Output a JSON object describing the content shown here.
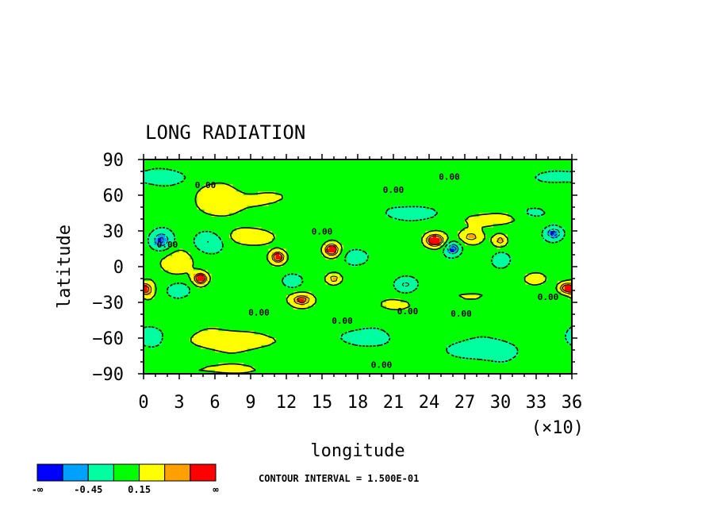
{
  "chart_data": {
    "type": "heatmap",
    "title": "LONG RADIATION",
    "xlabel": "longitude",
    "ylabel": "latitude",
    "x_ticks": [
      "0",
      "3",
      "6",
      "9",
      "12",
      "15",
      "18",
      "21",
      "24",
      "27",
      "30",
      "33",
      "36"
    ],
    "x_multiplier": "(×10)",
    "y_ticks": [
      "90",
      "60",
      "30",
      "0",
      "−30",
      "−60",
      "−90"
    ],
    "xlim": [
      0,
      360
    ],
    "ylim": [
      -90,
      90
    ],
    "grid": false,
    "contour_interval_text": "CONTOUR INTERVAL = 1.500E-01",
    "contour_label": "0.00",
    "colorbar": {
      "colors": [
        "#0000ff",
        "#00a0ff",
        "#00ffa0",
        "#00ff00",
        "#ffff00",
        "#ffa000",
        "#ff0000"
      ],
      "labels": [
        "-∞",
        "-0.45",
        "0.15",
        "∞"
      ]
    },
    "contour_label_positions": [
      {
        "lon": 52,
        "lat": 66
      },
      {
        "lon": 210,
        "lat": 62
      },
      {
        "lon": 257,
        "lat": 73
      },
      {
        "lon": 150,
        "lat": 27
      },
      {
        "lon": 20,
        "lat": 16
      },
      {
        "lon": 97,
        "lat": -41
      },
      {
        "lon": 167,
        "lat": -48
      },
      {
        "lon": 222,
        "lat": -40
      },
      {
        "lon": 267,
        "lat": -42
      },
      {
        "lon": 340,
        "lat": -28
      },
      {
        "lon": 200,
        "lat": -85
      }
    ],
    "anomalies": [
      {
        "lon": 15,
        "lat": 22,
        "v": -0.7,
        "rx": 10,
        "ry": 9
      },
      {
        "lon": 345,
        "lat": 28,
        "v": -0.7,
        "rx": 8,
        "ry": 6
      },
      {
        "lon": 260,
        "lat": 15,
        "v": -0.75,
        "rx": 7,
        "ry": 6
      },
      {
        "lon": 125,
        "lat": -12,
        "v": -0.5,
        "rx": 9,
        "ry": 6
      },
      {
        "lon": 220,
        "lat": -15,
        "v": -0.55,
        "rx": 10,
        "ry": 7
      },
      {
        "lon": 300,
        "lat": 5,
        "v": -0.5,
        "rx": 8,
        "ry": 7
      },
      {
        "lon": 30,
        "lat": -20,
        "v": -0.5,
        "rx": 10,
        "ry": 7
      },
      {
        "lon": 55,
        "lat": 20,
        "v": -0.4,
        "rx": 12,
        "ry": 8
      },
      {
        "lon": 180,
        "lat": 8,
        "v": -0.35,
        "rx": 12,
        "ry": 8
      },
      {
        "lon": 48,
        "lat": -10,
        "v": 0.9,
        "rx": 6,
        "ry": 5
      },
      {
        "lon": 113,
        "lat": 8,
        "v": 0.85,
        "rx": 6,
        "ry": 5
      },
      {
        "lon": 158,
        "lat": 14,
        "v": 0.95,
        "rx": 7,
        "ry": 6
      },
      {
        "lon": 245,
        "lat": 22,
        "v": 0.95,
        "rx": 9,
        "ry": 6
      },
      {
        "lon": 355,
        "lat": -18,
        "v": 0.85,
        "rx": 7,
        "ry": 5
      },
      {
        "lon": 133,
        "lat": -28,
        "v": 0.7,
        "rx": 9,
        "ry": 5
      },
      {
        "lon": 160,
        "lat": -10,
        "v": 0.65,
        "rx": 7,
        "ry": 5
      },
      {
        "lon": 4,
        "lat": -20,
        "v": 0.55,
        "rx": 6,
        "ry": 8
      },
      {
        "lon": 300,
        "lat": 22,
        "v": 0.6,
        "rx": 6,
        "ry": 5
      },
      {
        "lon": 330,
        "lat": -10,
        "v": 0.5,
        "rx": 9,
        "ry": 5
      },
      {
        "lon": 275,
        "lat": 25,
        "v": 0.5,
        "rx": 9,
        "ry": 5
      },
      {
        "lon": 60,
        "lat": 55,
        "v": 0.3,
        "rx": 22,
        "ry": 14
      },
      {
        "lon": 110,
        "lat": 58,
        "v": 0.25,
        "rx": 22,
        "ry": 10
      },
      {
        "lon": 300,
        "lat": 40,
        "v": 0.28,
        "rx": 30,
        "ry": 8
      },
      {
        "lon": 80,
        "lat": -62,
        "v": 0.3,
        "rx": 55,
        "ry": 9
      },
      {
        "lon": 60,
        "lat": -86,
        "v": 0.25,
        "rx": 40,
        "ry": 4
      },
      {
        "lon": 30,
        "lat": 5,
        "v": 0.28,
        "rx": 15,
        "ry": 12
      },
      {
        "lon": 90,
        "lat": 25,
        "v": 0.3,
        "rx": 20,
        "ry": 7
      },
      {
        "lon": 210,
        "lat": -32,
        "v": 0.25,
        "rx": 15,
        "ry": 5
      },
      {
        "lon": 270,
        "lat": -25,
        "v": 0.25,
        "rx": 20,
        "ry": 5
      },
      {
        "lon": 20,
        "lat": 75,
        "v": -0.35,
        "rx": 18,
        "ry": 6
      },
      {
        "lon": 340,
        "lat": 75,
        "v": -0.3,
        "rx": 20,
        "ry": 6
      },
      {
        "lon": 280,
        "lat": -70,
        "v": -0.35,
        "rx": 35,
        "ry": 9
      },
      {
        "lon": 180,
        "lat": -60,
        "v": -0.3,
        "rx": 25,
        "ry": 8
      },
      {
        "lon": 5,
        "lat": -60,
        "v": -0.3,
        "rx": 15,
        "ry": 10
      },
      {
        "lon": 230,
        "lat": 45,
        "v": -0.3,
        "rx": 25,
        "ry": 6
      },
      {
        "lon": 330,
        "lat": 45,
        "v": -0.3,
        "rx": 15,
        "ry": 6
      }
    ]
  }
}
